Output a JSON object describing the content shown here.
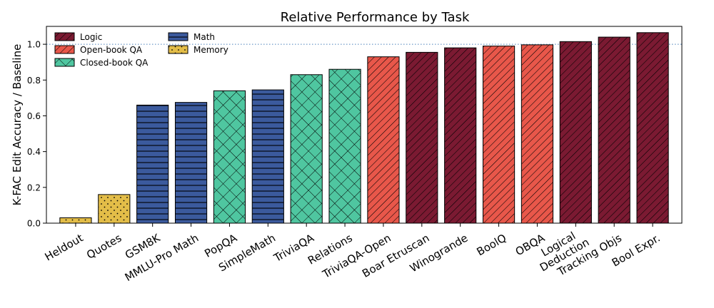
{
  "chart_data": {
    "type": "bar",
    "title": "Relative Performance by Task",
    "xlabel": "",
    "ylabel": "K-FAC Edit Accuracy / Baseline",
    "ylim": [
      0,
      1.1
    ],
    "yticks": [
      "0.0",
      "0.2",
      "0.4",
      "0.6",
      "0.8",
      "1.0"
    ],
    "reference_line": 1.0,
    "legend_position": "top-left",
    "categories": [
      "Heldout",
      "Quotes",
      "GSM8K",
      "MMLU-Pro Math",
      "PopQA",
      "SimpleMath",
      "TriviaQA",
      "Relations",
      "TriviaQA-Open",
      "Boar Etruscan",
      "Winogrande",
      "BoolQ",
      "OBQA",
      "Logical\nDeduction",
      "Tracking Objs",
      "Bool Expr."
    ],
    "values": [
      0.03,
      0.16,
      0.66,
      0.675,
      0.74,
      0.745,
      0.83,
      0.86,
      0.93,
      0.955,
      0.98,
      0.99,
      0.997,
      1.015,
      1.04,
      1.065
    ],
    "groups": [
      "Memory",
      "Memory",
      "Math",
      "Math",
      "Closed-book QA",
      "Math",
      "Closed-book QA",
      "Closed-book QA",
      "Open-book QA",
      "Logic",
      "Logic",
      "Open-book QA",
      "Open-book QA",
      "Logic",
      "Logic",
      "Logic"
    ],
    "legend": [
      {
        "name": "Logic",
        "color": "#7b1a32",
        "pattern": "diag"
      },
      {
        "name": "Open-book QA",
        "color": "#e8574a",
        "pattern": "diag"
      },
      {
        "name": "Closed-book QA",
        "color": "#4fc6a0",
        "pattern": "cross"
      },
      {
        "name": "Math",
        "color": "#3b5a9d",
        "pattern": "hline"
      },
      {
        "name": "Memory",
        "color": "#e3bd48",
        "pattern": "dots"
      }
    ]
  }
}
